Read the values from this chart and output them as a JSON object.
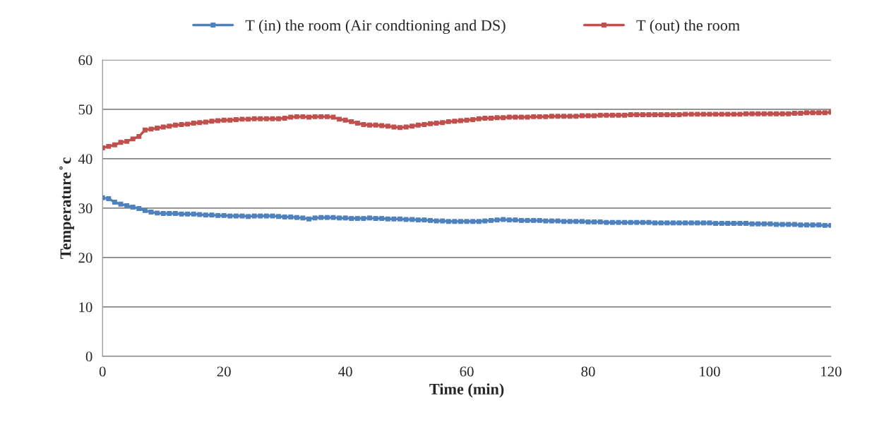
{
  "chart_data": {
    "type": "line",
    "xlabel": "Time (min)",
    "ylabel": "Temperature ̊ c",
    "x": [
      0,
      1,
      2,
      3,
      4,
      5,
      6,
      7,
      8,
      9,
      10,
      11,
      12,
      13,
      14,
      15,
      16,
      17,
      18,
      19,
      20,
      21,
      22,
      23,
      24,
      25,
      26,
      27,
      28,
      29,
      30,
      31,
      32,
      33,
      34,
      35,
      36,
      37,
      38,
      39,
      40,
      41,
      42,
      43,
      44,
      45,
      46,
      47,
      48,
      49,
      50,
      51,
      52,
      53,
      54,
      55,
      56,
      57,
      58,
      59,
      60,
      61,
      62,
      63,
      64,
      65,
      66,
      67,
      68,
      69,
      70,
      71,
      72,
      73,
      74,
      75,
      76,
      77,
      78,
      79,
      80,
      81,
      82,
      83,
      84,
      85,
      86,
      87,
      88,
      89,
      90,
      91,
      92,
      93,
      94,
      95,
      96,
      97,
      98,
      99,
      100,
      101,
      102,
      103,
      104,
      105,
      106,
      107,
      108,
      109,
      110,
      111,
      112,
      113,
      114,
      115,
      116,
      117,
      118,
      119,
      120
    ],
    "series": [
      {
        "name": "T (in) the room (Air condtioning and DS)",
        "color": "#4f81bd",
        "values": [
          32.1,
          31.9,
          31.2,
          30.8,
          30.5,
          30.2,
          29.9,
          29.5,
          29.2,
          29.0,
          28.9,
          28.9,
          28.9,
          28.8,
          28.8,
          28.8,
          28.7,
          28.6,
          28.6,
          28.5,
          28.5,
          28.4,
          28.4,
          28.4,
          28.3,
          28.4,
          28.4,
          28.4,
          28.4,
          28.3,
          28.2,
          28.2,
          28.1,
          28.0,
          27.8,
          28.0,
          28.1,
          28.1,
          28.1,
          28.0,
          28.0,
          27.9,
          27.9,
          27.9,
          28.0,
          27.9,
          27.9,
          27.8,
          27.8,
          27.8,
          27.7,
          27.7,
          27.6,
          27.6,
          27.5,
          27.4,
          27.4,
          27.3,
          27.3,
          27.3,
          27.3,
          27.3,
          27.3,
          27.4,
          27.5,
          27.6,
          27.7,
          27.6,
          27.6,
          27.5,
          27.5,
          27.5,
          27.5,
          27.4,
          27.4,
          27.4,
          27.3,
          27.3,
          27.3,
          27.3,
          27.2,
          27.2,
          27.2,
          27.1,
          27.1,
          27.1,
          27.1,
          27.1,
          27.1,
          27.1,
          27.1,
          27.0,
          27.0,
          27.0,
          27.0,
          27.0,
          27.0,
          27.0,
          27.0,
          27.0,
          27.0,
          26.9,
          26.9,
          26.9,
          26.9,
          26.9,
          26.9,
          26.8,
          26.8,
          26.8,
          26.8,
          26.7,
          26.7,
          26.7,
          26.7,
          26.6,
          26.6,
          26.6,
          26.6,
          26.5,
          26.5
        ]
      },
      {
        "name": "T (out) the room",
        "color": "#c0504d",
        "values": [
          42.2,
          42.5,
          42.8,
          43.3,
          43.5,
          44.0,
          44.5,
          45.8,
          46.0,
          46.2,
          46.4,
          46.6,
          46.8,
          46.9,
          47.0,
          47.2,
          47.3,
          47.4,
          47.6,
          47.7,
          47.8,
          47.8,
          47.9,
          48.0,
          48.0,
          48.1,
          48.1,
          48.1,
          48.1,
          48.1,
          48.2,
          48.4,
          48.5,
          48.5,
          48.4,
          48.5,
          48.5,
          48.5,
          48.4,
          48.0,
          47.8,
          47.5,
          47.2,
          46.9,
          46.8,
          46.8,
          46.7,
          46.6,
          46.4,
          46.3,
          46.4,
          46.6,
          46.8,
          46.9,
          47.1,
          47.2,
          47.3,
          47.5,
          47.6,
          47.7,
          47.8,
          47.9,
          48.1,
          48.2,
          48.2,
          48.3,
          48.3,
          48.4,
          48.4,
          48.4,
          48.4,
          48.5,
          48.5,
          48.5,
          48.6,
          48.6,
          48.6,
          48.6,
          48.6,
          48.7,
          48.7,
          48.7,
          48.8,
          48.8,
          48.8,
          48.8,
          48.8,
          48.9,
          48.9,
          48.9,
          48.9,
          48.9,
          48.9,
          48.9,
          48.9,
          48.9,
          49.0,
          49.0,
          49.0,
          49.0,
          49.0,
          49.0,
          49.0,
          49.0,
          49.0,
          49.0,
          49.1,
          49.1,
          49.1,
          49.1,
          49.1,
          49.1,
          49.1,
          49.1,
          49.2,
          49.2,
          49.3,
          49.3,
          49.3,
          49.3,
          49.4
        ]
      }
    ],
    "xlim": [
      0,
      120
    ],
    "xticks": [
      0,
      20,
      40,
      60,
      80,
      100,
      120
    ],
    "ylim": [
      0,
      60
    ],
    "yticks": [
      0,
      10,
      20,
      30,
      40,
      50,
      60
    ],
    "grid": "y",
    "legend": "top",
    "marker": "square",
    "line_style": "solid"
  }
}
